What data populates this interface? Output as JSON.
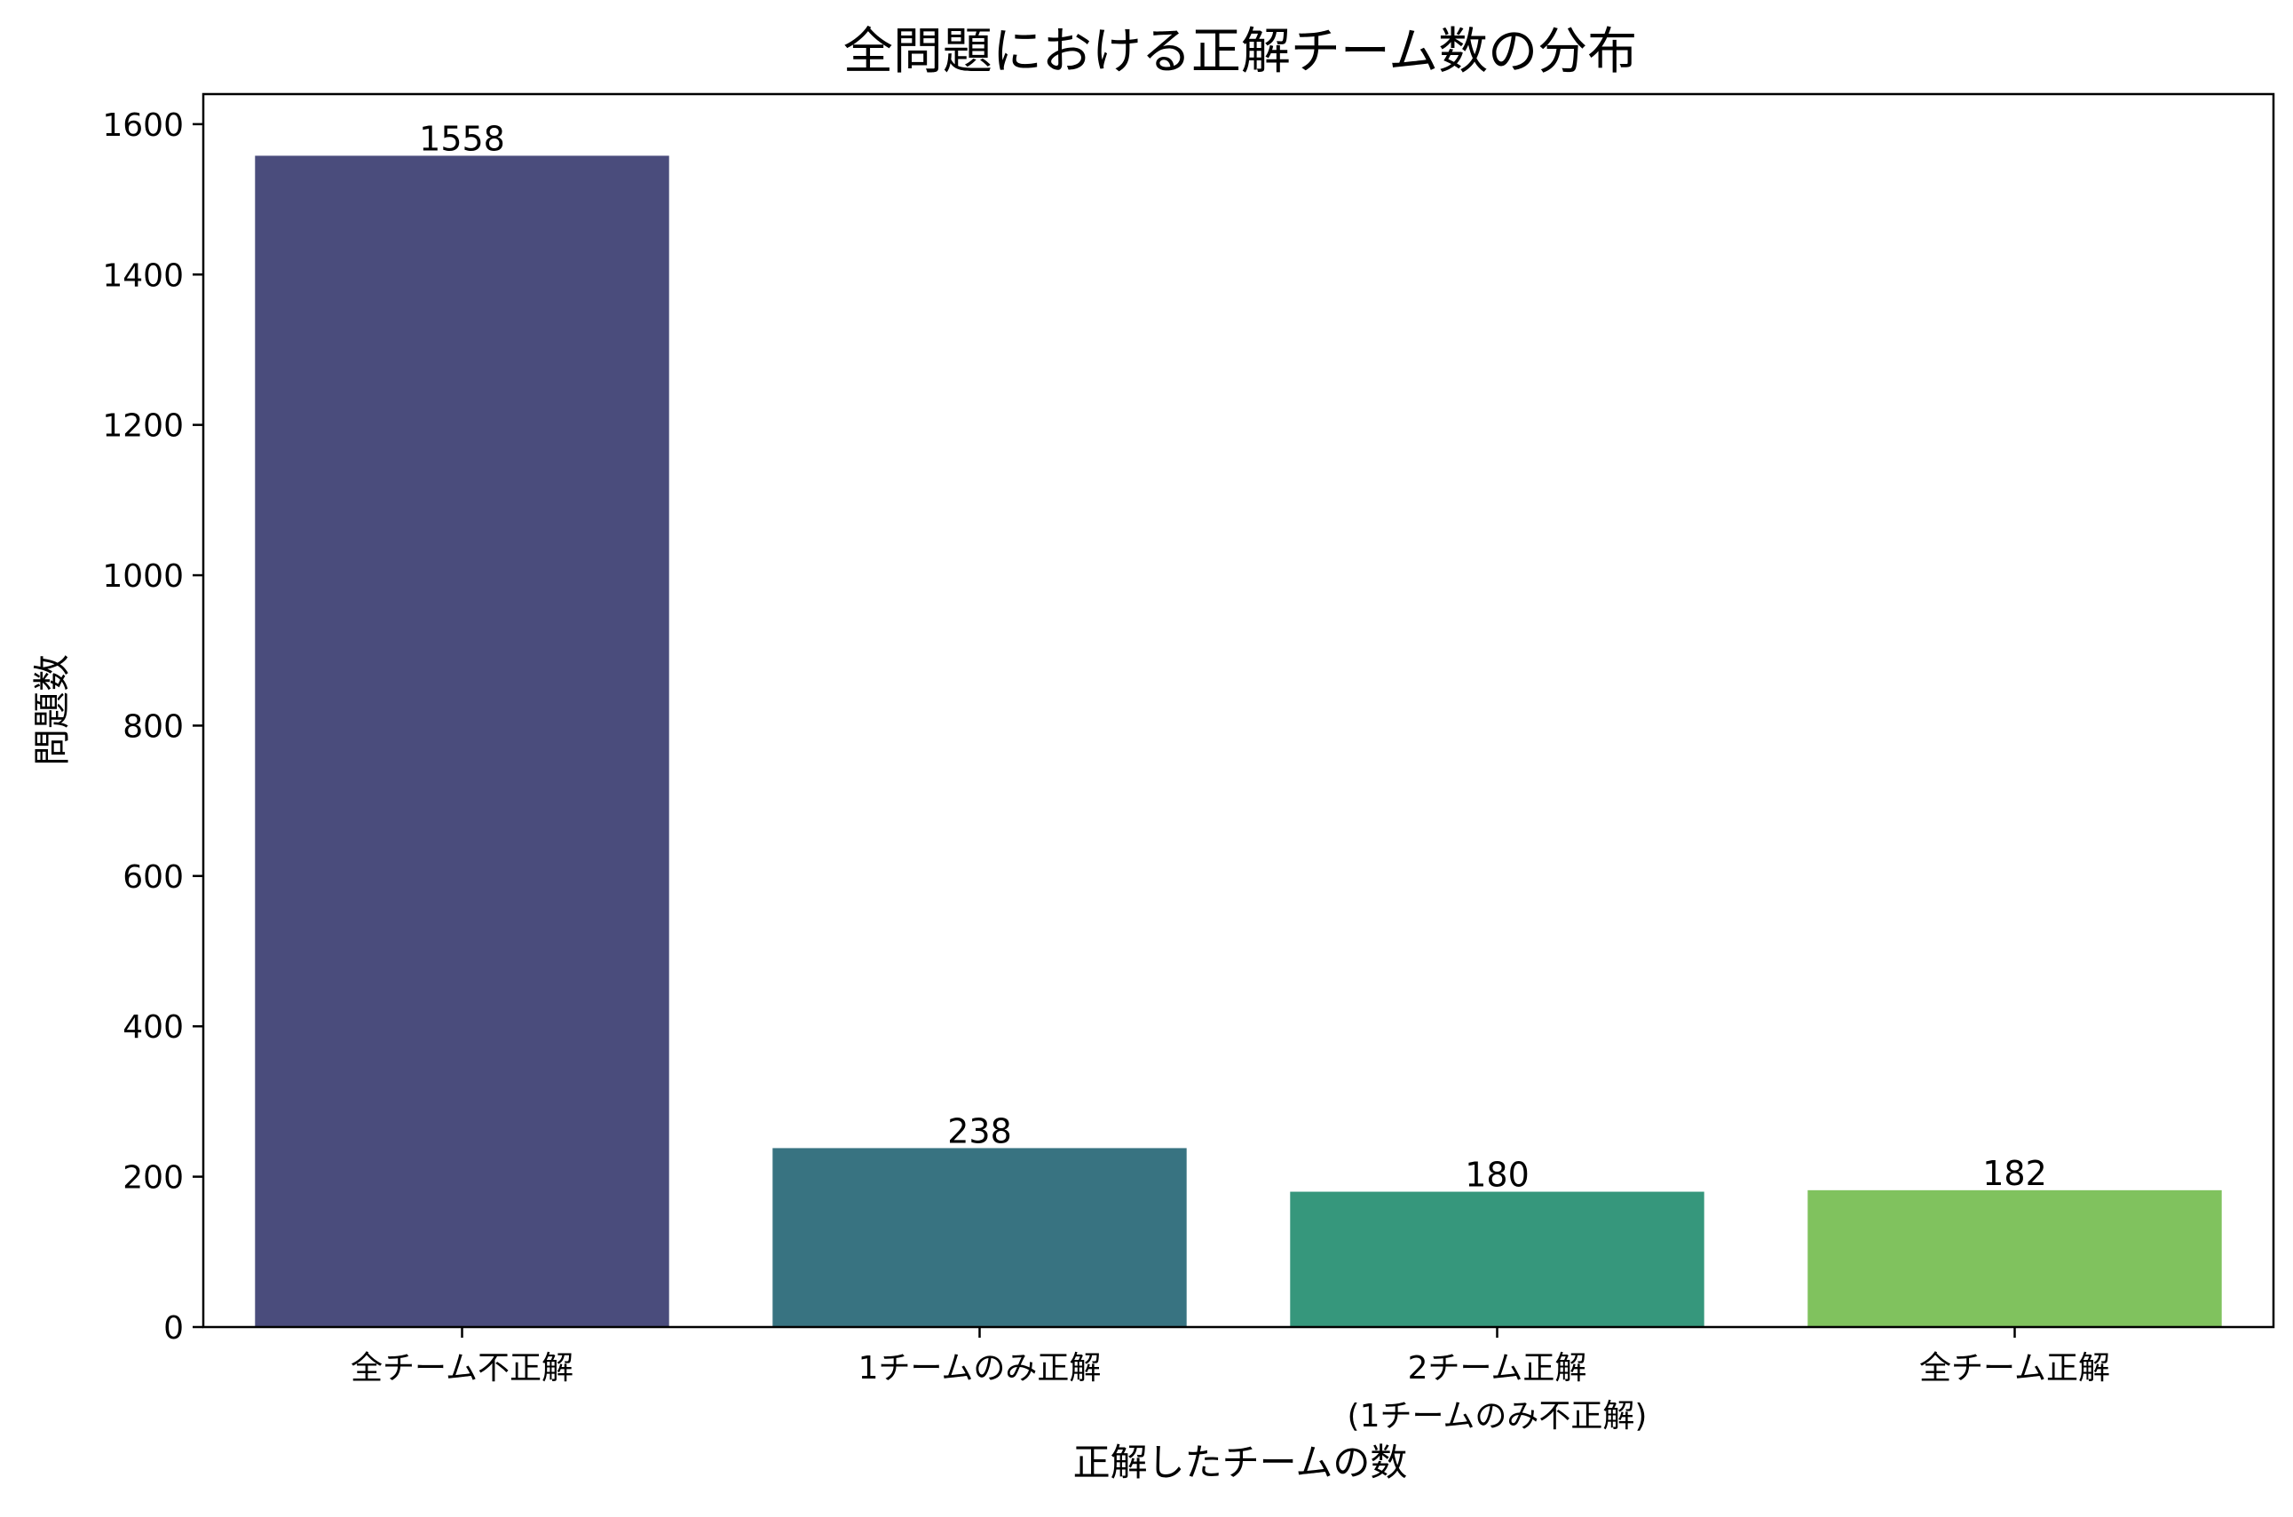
{
  "chart_data": {
    "type": "bar",
    "title": "全問題における正解チーム数の分布",
    "xlabel": "正解したチームの数",
    "ylabel": "問題数",
    "categories": [
      [
        "全チーム不正解"
      ],
      [
        "1チームのみ正解"
      ],
      [
        "2チーム正解",
        "(1チームのみ不正解)"
      ],
      [
        "全チーム正解"
      ]
    ],
    "values": [
      1558,
      238,
      180,
      182
    ],
    "bar_colors": [
      "#4a4c7c",
      "#387381",
      "#36977c",
      "#80c25e"
    ],
    "ylim": [
      0,
      1640
    ],
    "yticks": [
      0,
      200,
      400,
      600,
      800,
      1000,
      1200,
      1400,
      1600
    ],
    "grid": false,
    "legend": "none",
    "data_labels": true
  }
}
